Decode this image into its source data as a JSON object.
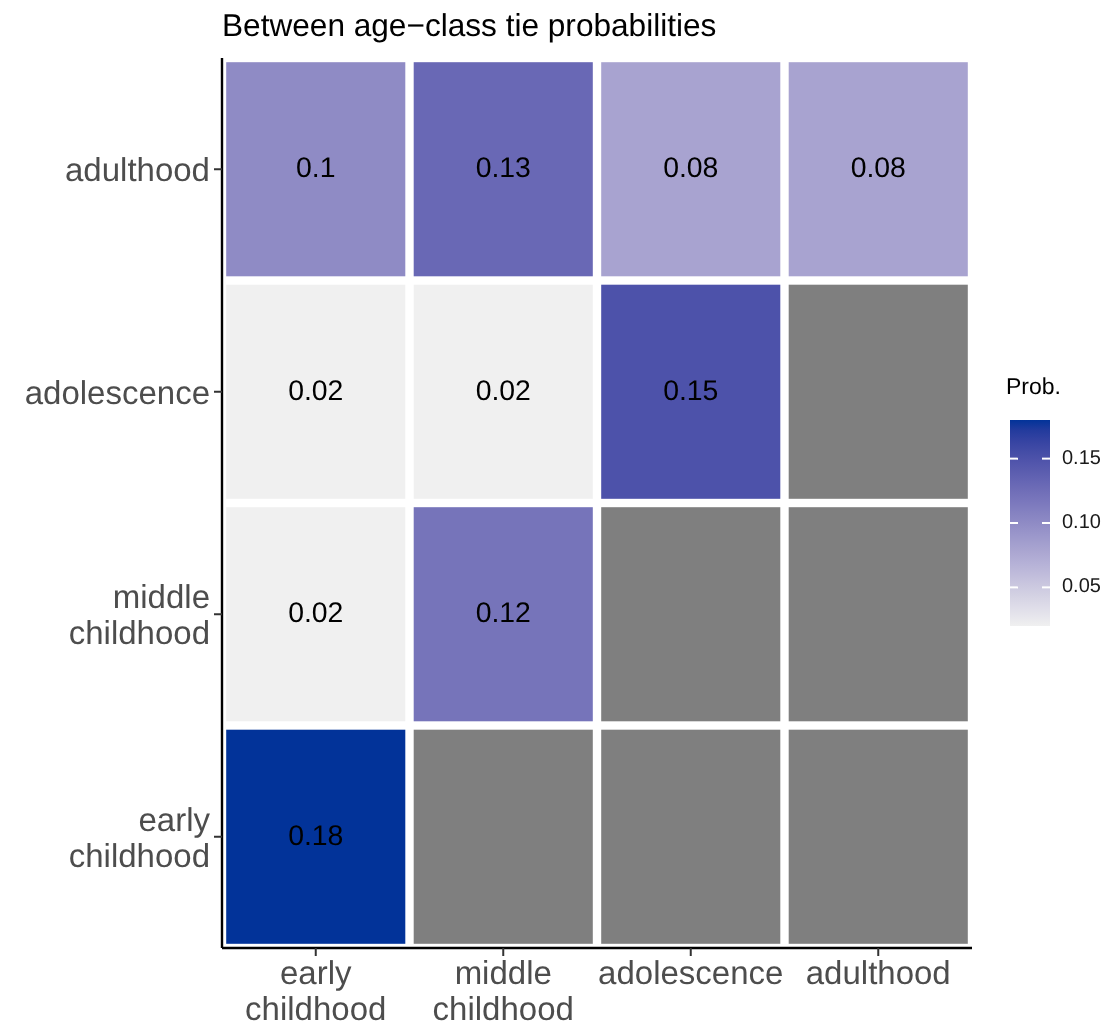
{
  "chart_data": {
    "type": "heatmap",
    "title": "Between age−class tie probabilities",
    "categories": [
      "early childhood",
      "middle childhood",
      "adolescence",
      "adulthood"
    ],
    "y_categories": [
      "adulthood",
      "adolescence",
      "middle childhood",
      "early childhood"
    ],
    "cells": [
      [
        0.1,
        0.13,
        0.08,
        0.08
      ],
      [
        0.02,
        0.02,
        0.15,
        null
      ],
      [
        0.02,
        0.12,
        null,
        null
      ],
      [
        0.18,
        null,
        null,
        null
      ]
    ],
    "clabel": "Prob.",
    "clim": [
      0.02,
      0.18
    ],
    "cticks": [
      0.05,
      {
        "value": 0.1,
        "label": "0.10"
      },
      0.15
    ],
    "data_labels": true
  }
}
